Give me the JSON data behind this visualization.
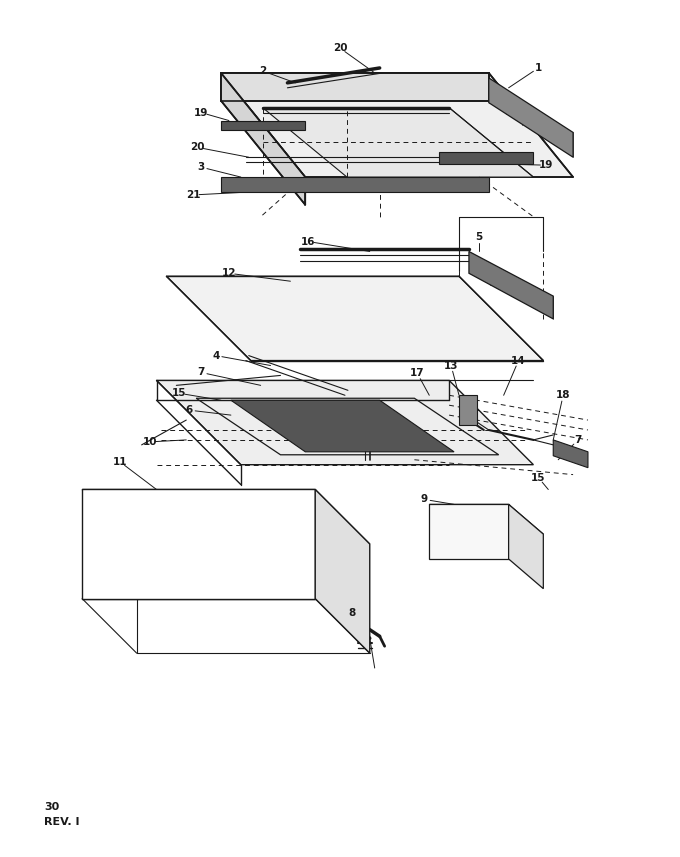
{
  "bg_color": "#ffffff",
  "line_color": "#1a1a1a",
  "fig_width": 6.8,
  "fig_height": 8.57,
  "dpi": 100,
  "bottom_text_line1": "30",
  "bottom_text_line2": "REV. I"
}
